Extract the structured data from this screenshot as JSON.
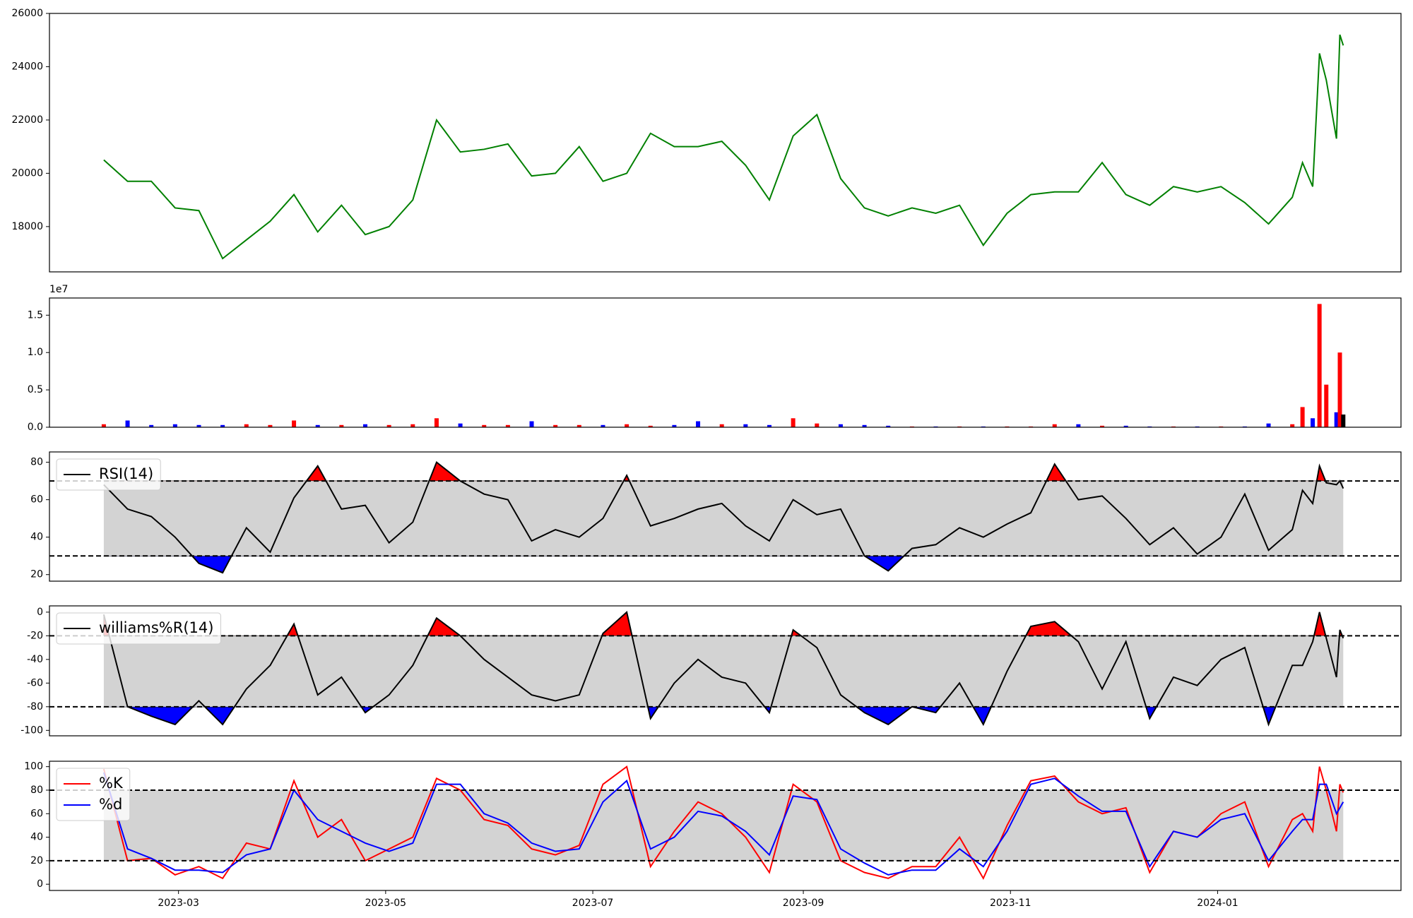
{
  "chart_data": {
    "type": "multi",
    "x": [
      "2023-02-07",
      "2023-02-14",
      "2023-02-21",
      "2023-02-28",
      "2023-03-07",
      "2023-03-14",
      "2023-03-21",
      "2023-03-28",
      "2023-04-04",
      "2023-04-11",
      "2023-04-18",
      "2023-04-25",
      "2023-05-02",
      "2023-05-09",
      "2023-05-16",
      "2023-05-23",
      "2023-05-30",
      "2023-06-06",
      "2023-06-13",
      "2023-06-20",
      "2023-06-27",
      "2023-07-04",
      "2023-07-11",
      "2023-07-18",
      "2023-07-25",
      "2023-08-01",
      "2023-08-08",
      "2023-08-15",
      "2023-08-22",
      "2023-08-29",
      "2023-09-05",
      "2023-09-12",
      "2023-09-19",
      "2023-09-26",
      "2023-10-03",
      "2023-10-10",
      "2023-10-17",
      "2023-10-24",
      "2023-10-31",
      "2023-11-07",
      "2023-11-14",
      "2023-11-21",
      "2023-11-28",
      "2023-12-05",
      "2023-12-12",
      "2023-12-19",
      "2023-12-26",
      "2024-01-02",
      "2024-01-09",
      "2024-01-16",
      "2024-01-23",
      "2024-01-26",
      "2024-01-29",
      "2024-01-31",
      "2024-02-02",
      "2024-02-05",
      "2024-02-06",
      "2024-02-07"
    ],
    "xlim": [
      "2023-01-22",
      "2024-02-24"
    ],
    "xticks": [
      {
        "value": "2023-03-01",
        "label": "2023-03"
      },
      {
        "value": "2023-05-01",
        "label": "2023-05"
      },
      {
        "value": "2023-07-01",
        "label": "2023-07"
      },
      {
        "value": "2023-09-01",
        "label": "2023-09"
      },
      {
        "value": "2023-11-01",
        "label": "2023-11"
      },
      {
        "value": "2024-01-01",
        "label": "2024-01"
      }
    ],
    "panels": [
      {
        "type": "line",
        "ylim": [
          16300,
          26000
        ],
        "yticks": [
          18000,
          20000,
          22000,
          24000,
          26000
        ],
        "series": [
          {
            "color": "green",
            "values": [
              20500,
              19700,
              19700,
              18700,
              18600,
              16800,
              17500,
              18200,
              19200,
              17800,
              18800,
              17700,
              18000,
              19000,
              22000,
              20800,
              20900,
              21100,
              19900,
              20000,
              21000,
              19700,
              20000,
              21500,
              21000,
              21000,
              21200,
              20300,
              19000,
              21400,
              22200,
              19800,
              18700,
              18400,
              18700,
              18500,
              18800,
              17300,
              18500,
              19200,
              19300,
              19300,
              20400,
              19200,
              18800,
              19500,
              19300,
              19500,
              18900,
              18100,
              19100,
              20400,
              19500,
              24500,
              23500,
              21300,
              25200,
              24800
            ]
          }
        ]
      },
      {
        "type": "bar",
        "ylim": [
          0,
          17300000
        ],
        "offset_label": "1e7",
        "yticks": [
          {
            "value": 0,
            "label": "0.0"
          },
          {
            "value": 5000000,
            "label": "0.5"
          },
          {
            "value": 10000000,
            "label": "1.0"
          },
          {
            "value": 15000000,
            "label": "1.5"
          }
        ],
        "series": [
          {
            "values": [
              400000,
              900000,
              300000,
              400000,
              300000,
              300000,
              400000,
              300000,
              900000,
              300000,
              300000,
              400000,
              300000,
              400000,
              1200000,
              500000,
              300000,
              300000,
              800000,
              300000,
              300000,
              300000,
              400000,
              200000,
              300000,
              800000,
              400000,
              400000,
              300000,
              1200000,
              500000,
              400000,
              300000,
              200000,
              100000,
              100000,
              100000,
              100000,
              100000,
              100000,
              400000,
              400000,
              200000,
              200000,
              100000,
              100000,
              100000,
              100000,
              100000,
              500000,
              400000,
              2700000,
              1200000,
              16500000,
              5700000,
              2000000,
              10000000,
              1700000
            ],
            "colors": [
              "red",
              "blue",
              "blue",
              "blue",
              "blue",
              "blue",
              "red",
              "red",
              "red",
              "blue",
              "red",
              "blue",
              "red",
              "red",
              "red",
              "blue",
              "red",
              "red",
              "blue",
              "red",
              "red",
              "blue",
              "red",
              "red",
              "blue",
              "blue",
              "red",
              "blue",
              "blue",
              "red",
              "red",
              "blue",
              "blue",
              "blue",
              "red",
              "blue",
              "red",
              "blue",
              "red",
              "red",
              "red",
              "blue",
              "red",
              "blue",
              "blue",
              "red",
              "blue",
              "red",
              "blue",
              "blue",
              "red",
              "red",
              "blue",
              "red",
              "red",
              "blue",
              "red",
              "black"
            ]
          }
        ]
      },
      {
        "type": "line",
        "ylim": [
          16.5,
          85.5
        ],
        "yticks": [
          20,
          40,
          60,
          80
        ],
        "hlines": [
          30,
          70
        ],
        "band_color": "#d3d3d3",
        "fill_above": "red",
        "fill_below": "blue",
        "legend": "upper left",
        "series": [
          {
            "name": "RSI(14)",
            "color": "black",
            "values": [
              68,
              55,
              51,
              40,
              26,
              21,
              45,
              32,
              61,
              78,
              55,
              57,
              37,
              48,
              80,
              70,
              63,
              60,
              38,
              44,
              40,
              50,
              73,
              46,
              50,
              55,
              58,
              46,
              38,
              60,
              52,
              55,
              30,
              22,
              34,
              36,
              45,
              40,
              47,
              53,
              79,
              60,
              62,
              50,
              36,
              45,
              31,
              40,
              63,
              33,
              44,
              65,
              58,
              78,
              69,
              68,
              70,
              66
            ]
          }
        ]
      },
      {
        "type": "line",
        "ylim": [
          -104.6,
          5.3
        ],
        "yticks": [
          0,
          -20,
          -40,
          -60,
          -80,
          -100
        ],
        "hlines": [
          -20,
          -80
        ],
        "band_color": "#d3d3d3",
        "fill_above": "red",
        "fill_below": "blue",
        "legend": "upper left",
        "series": [
          {
            "name": "williams%R(14)",
            "color": "black",
            "values": [
              -2,
              -80,
              -88,
              -95,
              -75,
              -95,
              -65,
              -45,
              -10,
              -70,
              -55,
              -85,
              -70,
              -45,
              -5,
              -20,
              -40,
              -55,
              -70,
              -75,
              -70,
              -18,
              0,
              -90,
              -60,
              -40,
              -55,
              -60,
              -85,
              -15,
              -30,
              -70,
              -85,
              -95,
              -80,
              -85,
              -60,
              -95,
              -50,
              -12,
              -8,
              -25,
              -65,
              -25,
              -90,
              -55,
              -62,
              -40,
              -30,
              -95,
              -45,
              -45,
              -25,
              0,
              -22,
              -55,
              -15,
              -22
            ]
          }
        ]
      },
      {
        "type": "line",
        "ylim": [
          -5.3,
          104.6
        ],
        "yticks": [
          0,
          20,
          40,
          60,
          80,
          100
        ],
        "hlines": [
          20,
          80
        ],
        "band_color": "#d3d3d3",
        "legend": "upper left",
        "show_xticks": true,
        "series": [
          {
            "name": "%K",
            "color": "red",
            "values": [
              98,
              20,
              22,
              8,
              15,
              5,
              35,
              30,
              88,
              40,
              55,
              20,
              30,
              40,
              90,
              80,
              55,
              50,
              30,
              25,
              33,
              85,
              100,
              15,
              45,
              70,
              60,
              40,
              10,
              85,
              70,
              20,
              10,
              5,
              15,
              15,
              40,
              5,
              50,
              88,
              92,
              70,
              60,
              65,
              10,
              45,
              40,
              60,
              70,
              15,
              55,
              60,
              45,
              100,
              80,
              45,
              85,
              78
            ]
          },
          {
            "name": "%d",
            "color": "blue",
            "values": [
              95,
              30,
              22,
              12,
              12,
              10,
              25,
              30,
              80,
              55,
              45,
              35,
              28,
              35,
              85,
              85,
              60,
              52,
              35,
              28,
              30,
              70,
              88,
              30,
              40,
              62,
              58,
              45,
              25,
              75,
              72,
              30,
              18,
              8,
              12,
              12,
              30,
              15,
              45,
              85,
              90,
              75,
              62,
              62,
              15,
              45,
              40,
              55,
              60,
              20,
              45,
              55,
              55,
              85,
              85,
              60,
              65,
              70
            ]
          }
        ]
      }
    ]
  }
}
